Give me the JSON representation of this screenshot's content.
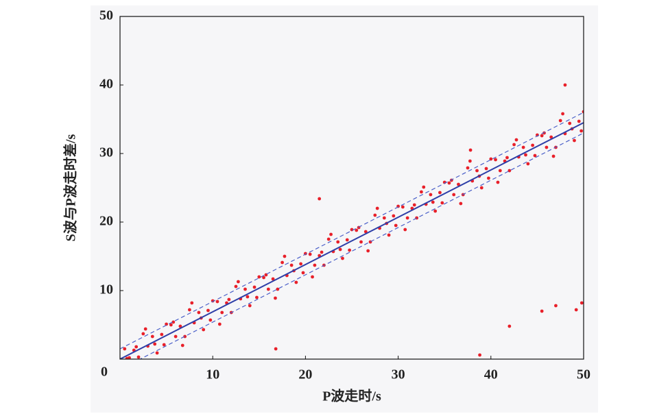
{
  "chart_data": {
    "type": "scatter",
    "xlabel": "P波走时/s",
    "ylabel": "S波与P波走时差/s",
    "xlim": [
      0,
      50
    ],
    "ylim": [
      0,
      50
    ],
    "xticks": [
      10,
      20,
      30,
      40,
      50
    ],
    "yticks": [
      0,
      10,
      20,
      30,
      40,
      50
    ],
    "points": {
      "color": "#e8202a",
      "x": [
        0.5,
        1,
        1.5,
        2,
        2.5,
        3,
        3.5,
        4,
        4.5,
        5,
        5.5,
        6,
        6.5,
        7,
        7.5,
        8,
        8.5,
        9,
        9.5,
        10,
        10.5,
        11,
        11.5,
        12,
        12.5,
        13,
        13.5,
        14,
        14.5,
        15,
        15.5,
        16,
        16.5,
        17,
        17.5,
        18,
        18.5,
        19,
        19.5,
        20,
        20.5,
        21,
        21.5,
        22,
        22.5,
        23,
        23.5,
        24,
        24.5,
        25,
        25.5,
        26,
        26.5,
        27,
        27.5,
        28,
        28.5,
        29,
        29.5,
        30,
        30.5,
        31,
        31.5,
        32,
        32.5,
        33,
        33.5,
        34,
        34.5,
        35,
        35.5,
        36,
        36.5,
        37,
        37.5,
        38,
        38.5,
        39,
        39.5,
        40,
        40.5,
        41,
        41.5,
        42,
        42.5,
        43,
        43.5,
        44,
        44.5,
        45,
        45.5,
        46,
        46.5,
        47,
        47.5,
        48,
        48.5,
        49,
        49.5,
        50,
        0.75,
        1.75,
        2.75,
        3.75,
        4.75,
        5.75,
        6.75,
        7.75,
        8.75,
        9.75,
        10.75,
        11.75,
        12.75,
        13.75,
        14.75,
        15.75,
        16.75,
        17.75,
        18.75,
        19.75,
        20.75,
        21.75,
        22.75,
        23.75,
        24.75,
        25.75,
        26.75,
        27.75,
        28.75,
        29.75,
        30.75,
        31.75,
        32.75,
        33.75,
        34.75,
        35.75,
        36.75,
        37.75,
        38.75,
        39.75,
        40.75,
        41.75,
        42.75,
        43.75,
        44.75,
        45.75,
        46.75,
        47.75,
        48.75,
        49.75,
        48,
        47,
        49.8,
        49.2,
        42,
        45.5,
        38.8,
        16.8,
        37.8,
        21.5
      ],
      "y": [
        1.5,
        0.2,
        1.3,
        0.3,
        3.7,
        1.9,
        3.3,
        0.9,
        3.6,
        5.1,
        5.0,
        3.3,
        4.8,
        3.3,
        7.2,
        5.3,
        6.8,
        4.3,
        7.1,
        8.5,
        8.4,
        6.8,
        8.2,
        6.8,
        10.6,
        8.8,
        10.2,
        7.8,
        10.5,
        12.0,
        11.9,
        10.2,
        11.7,
        10.2,
        14.1,
        12.2,
        13.7,
        11.2,
        13.9,
        15.4,
        15.3,
        13.7,
        15.1,
        13.7,
        17.5,
        15.7,
        17.1,
        14.7,
        17.4,
        18.9,
        18.8,
        17.1,
        18.6,
        17.1,
        21.0,
        19.1,
        20.6,
        18.1,
        20.9,
        22.3,
        22.2,
        20.6,
        22.0,
        20.6,
        24.4,
        22.6,
        24.0,
        21.6,
        24.3,
        25.8,
        25.7,
        24.0,
        25.5,
        24.0,
        27.9,
        26.0,
        27.5,
        25.0,
        27.8,
        29.2,
        29.1,
        27.5,
        28.9,
        27.5,
        31.3,
        29.5,
        30.9,
        28.5,
        31.2,
        32.7,
        32.6,
        30.9,
        32.4,
        30.9,
        34.8,
        32.9,
        34.4,
        31.9,
        34.7,
        36.1,
        0.1,
        1.8,
        4.4,
        2.2,
        2.1,
        5.4,
        2.0,
        8.2,
        6.0,
        5.7,
        5.1,
        8.7,
        11.3,
        9.1,
        9.0,
        12.3,
        8.9,
        15.0,
        12.9,
        12.6,
        12.0,
        15.6,
        18.2,
        16.0,
        15.9,
        19.2,
        15.8,
        22.0,
        19.8,
        19.5,
        18.9,
        22.5,
        25.1,
        22.9,
        22.8,
        26.1,
        22.7,
        28.9,
        26.7,
        26.4,
        25.8,
        29.4,
        32.0,
        29.8,
        29.7,
        33.0,
        29.6,
        35.8,
        33.6,
        33.3,
        40.0,
        7.8,
        8.2,
        7.2,
        4.8,
        7.0,
        0.6,
        1.5,
        30.5,
        23.4
      ]
    },
    "fit": {
      "color": "#2e3fa8",
      "x": [
        0,
        50
      ],
      "y": [
        0,
        34.5
      ]
    },
    "band": {
      "color": "#4a5fc8",
      "x": [
        0,
        50
      ],
      "upper": [
        1.5,
        36
      ],
      "lower": [
        -1.5,
        33
      ]
    }
  }
}
